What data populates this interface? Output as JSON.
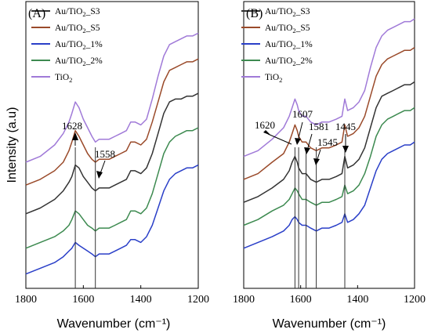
{
  "chart_data": [
    {
      "type": "line",
      "panel_label": "(A)",
      "xlabel": "Wavenumber (cm⁻¹)",
      "ylabel": "Intensity (a.u)",
      "xlim": [
        1800,
        1200
      ],
      "x_inverted": true,
      "ylim": [
        0,
        100
      ],
      "y_ticks_shown": false,
      "xticks": [
        1800,
        1600,
        1400,
        1200
      ],
      "legend_position": "top-left",
      "series": [
        {
          "name": "Au/TiO2_S3",
          "color": "#333333",
          "x": [
            1800,
            1750,
            1700,
            1670,
            1650,
            1640,
            1628,
            1615,
            1600,
            1585,
            1570,
            1558,
            1545,
            1530,
            1510,
            1490,
            1470,
            1450,
            1435,
            1420,
            1400,
            1380,
            1360,
            1340,
            1320,
            1300,
            1280,
            1260,
            1240,
            1220,
            1200
          ],
          "values": [
            26,
            28,
            31,
            34,
            37,
            39,
            43,
            42,
            39,
            37,
            35,
            34,
            35,
            35,
            35,
            36,
            37,
            38,
            41,
            41,
            40,
            42,
            47,
            54,
            61,
            65,
            66,
            66,
            67,
            67,
            68
          ]
        },
        {
          "name": "Au/TiO2_S5",
          "color": "#9a4a2a",
          "x": [
            1800,
            1750,
            1700,
            1670,
            1650,
            1640,
            1628,
            1615,
            1600,
            1585,
            1570,
            1558,
            1545,
            1530,
            1510,
            1490,
            1470,
            1450,
            1435,
            1420,
            1400,
            1380,
            1360,
            1340,
            1320,
            1300,
            1280,
            1260,
            1240,
            1220,
            1200
          ],
          "values": [
            36,
            38,
            41,
            44,
            48,
            51,
            55,
            53,
            50,
            47,
            45,
            44,
            45,
            45,
            45,
            46,
            47,
            48,
            51,
            51,
            50,
            52,
            58,
            65,
            72,
            76,
            77,
            78,
            79,
            79,
            80
          ]
        },
        {
          "name": "Au/TiO2_1%",
          "color": "#2a3fc8",
          "x": [
            1800,
            1750,
            1700,
            1670,
            1650,
            1640,
            1628,
            1615,
            1600,
            1585,
            1570,
            1558,
            1545,
            1530,
            1510,
            1490,
            1470,
            1450,
            1435,
            1420,
            1400,
            1380,
            1360,
            1340,
            1320,
            1300,
            1280,
            1260,
            1240,
            1220,
            1200
          ],
          "values": [
            5,
            7,
            9,
            11,
            13,
            14,
            16,
            15,
            14,
            13,
            12,
            11,
            12,
            12,
            12,
            13,
            14,
            15,
            17,
            17,
            16,
            18,
            22,
            28,
            34,
            38,
            40,
            41,
            42,
            42,
            43
          ]
        },
        {
          "name": "Au/TiO2_2%",
          "color": "#3d8a50",
          "x": [
            1800,
            1750,
            1700,
            1670,
            1650,
            1640,
            1628,
            1615,
            1600,
            1585,
            1570,
            1558,
            1545,
            1530,
            1510,
            1490,
            1470,
            1450,
            1435,
            1420,
            1400,
            1380,
            1360,
            1340,
            1320,
            1300,
            1280,
            1260,
            1240,
            1220,
            1200
          ],
          "values": [
            14,
            16,
            18,
            20,
            22,
            24,
            27,
            26,
            24,
            22,
            21,
            20,
            21,
            21,
            21,
            22,
            23,
            24,
            27,
            27,
            26,
            28,
            33,
            40,
            47,
            51,
            53,
            54,
            55,
            55,
            56
          ]
        },
        {
          "name": "TiO2",
          "color": "#a07ad8",
          "x": [
            1800,
            1750,
            1700,
            1670,
            1650,
            1640,
            1628,
            1615,
            1600,
            1585,
            1570,
            1558,
            1545,
            1530,
            1510,
            1490,
            1470,
            1450,
            1435,
            1420,
            1400,
            1380,
            1360,
            1340,
            1320,
            1300,
            1280,
            1260,
            1240,
            1220,
            1200
          ],
          "values": [
            44,
            46,
            50,
            54,
            58,
            61,
            65,
            63,
            59,
            56,
            53,
            51,
            52,
            52,
            52,
            53,
            54,
            55,
            58,
            58,
            57,
            59,
            66,
            74,
            81,
            85,
            86,
            87,
            88,
            88,
            89
          ]
        }
      ],
      "vertical_lines": [
        1628,
        1558
      ],
      "annotations": [
        {
          "text": "1628",
          "x": 1628
        },
        {
          "text": "1558",
          "x": 1558
        }
      ]
    },
    {
      "type": "line",
      "panel_label": "(B)",
      "xlabel": "Wavenumber (cm⁻¹)",
      "ylabel": "",
      "xlim": [
        1800,
        1200
      ],
      "x_inverted": true,
      "ylim": [
        0,
        100
      ],
      "y_ticks_shown": false,
      "xticks": [
        1800,
        1600,
        1400,
        1200
      ],
      "legend_position": "top-left",
      "series": [
        {
          "name": "Au/TiO2_S3",
          "color": "#333333",
          "x": [
            1800,
            1750,
            1700,
            1660,
            1640,
            1630,
            1620,
            1612,
            1607,
            1595,
            1581,
            1565,
            1545,
            1525,
            1500,
            1475,
            1455,
            1445,
            1435,
            1415,
            1395,
            1375,
            1355,
            1335,
            1315,
            1295,
            1275,
            1255,
            1235,
            1215,
            1200
          ],
          "values": [
            30,
            32,
            35,
            38,
            41,
            44,
            46,
            44,
            42,
            40,
            40,
            38,
            37,
            38,
            38,
            39,
            40,
            46,
            42,
            43,
            45,
            49,
            56,
            63,
            67,
            68,
            69,
            70,
            71,
            71,
            72
          ]
        },
        {
          "name": "Au/TiO2_S5",
          "color": "#9a4a2a",
          "x": [
            1800,
            1750,
            1700,
            1660,
            1640,
            1630,
            1620,
            1612,
            1607,
            1595,
            1581,
            1565,
            1545,
            1525,
            1500,
            1475,
            1455,
            1445,
            1435,
            1415,
            1395,
            1375,
            1355,
            1335,
            1315,
            1295,
            1275,
            1255,
            1235,
            1215,
            1200
          ],
          "values": [
            38,
            40,
            44,
            47,
            51,
            54,
            57,
            55,
            53,
            51,
            51,
            49,
            48,
            49,
            49,
            50,
            51,
            57,
            53,
            54,
            56,
            60,
            67,
            74,
            78,
            80,
            81,
            82,
            83,
            83,
            84
          ]
        },
        {
          "name": "Au/TiO2_1%",
          "color": "#2a3fc8",
          "x": [
            1800,
            1750,
            1700,
            1660,
            1640,
            1630,
            1620,
            1612,
            1607,
            1595,
            1581,
            1565,
            1545,
            1525,
            1500,
            1475,
            1455,
            1445,
            1435,
            1415,
            1395,
            1375,
            1355,
            1335,
            1315,
            1295,
            1275,
            1255,
            1235,
            1215,
            1200
          ],
          "values": [
            14,
            16,
            18,
            20,
            22,
            24,
            25,
            24,
            23,
            22,
            22,
            21,
            20,
            21,
            21,
            22,
            23,
            26,
            23,
            24,
            26,
            29,
            35,
            41,
            45,
            47,
            48,
            49,
            50,
            50,
            51
          ]
        },
        {
          "name": "Au/TiO2_2%",
          "color": "#3d8a50",
          "x": [
            1800,
            1750,
            1700,
            1660,
            1640,
            1630,
            1620,
            1612,
            1607,
            1595,
            1581,
            1565,
            1545,
            1525,
            1500,
            1475,
            1455,
            1445,
            1435,
            1415,
            1395,
            1375,
            1355,
            1335,
            1315,
            1295,
            1275,
            1255,
            1235,
            1215,
            1200
          ],
          "values": [
            22,
            24,
            27,
            29,
            31,
            33,
            35,
            34,
            33,
            31,
            31,
            30,
            29,
            30,
            30,
            31,
            32,
            36,
            33,
            34,
            36,
            40,
            46,
            53,
            57,
            59,
            60,
            61,
            62,
            62,
            63
          ]
        },
        {
          "name": "TiO2",
          "color": "#a07ad8",
          "x": [
            1800,
            1750,
            1700,
            1660,
            1640,
            1630,
            1620,
            1612,
            1607,
            1595,
            1581,
            1565,
            1545,
            1525,
            1500,
            1475,
            1455,
            1445,
            1435,
            1415,
            1395,
            1375,
            1355,
            1335,
            1315,
            1295,
            1275,
            1255,
            1235,
            1215,
            1200
          ],
          "values": [
            46,
            48,
            52,
            56,
            60,
            63,
            66,
            64,
            62,
            60,
            60,
            58,
            57,
            58,
            58,
            59,
            60,
            66,
            62,
            63,
            65,
            69,
            77,
            84,
            88,
            90,
            91,
            92,
            93,
            93,
            94
          ]
        }
      ],
      "vertical_lines": [
        1620,
        1607,
        1581,
        1545,
        1445
      ],
      "annotations": [
        {
          "text": "1620",
          "x": 1620
        },
        {
          "text": "1607",
          "x": 1607
        },
        {
          "text": "1581",
          "x": 1581
        },
        {
          "text": "1545",
          "x": 1545
        },
        {
          "text": "1445",
          "x": 1445
        }
      ]
    }
  ]
}
